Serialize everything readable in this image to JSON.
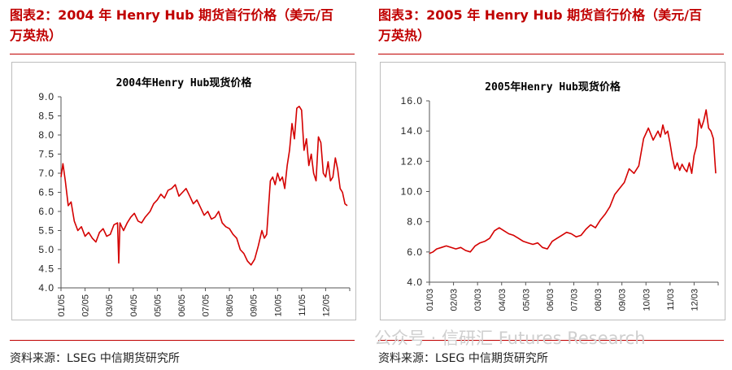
{
  "panels": [
    {
      "heading_line1": "图表2：2004 年 Henry Hub 期货首行价格（美元/百",
      "heading_line2": "万英热）",
      "source": "资料来源：LSEG  中信期货研究所"
    },
    {
      "heading_line1": "图表3：2005 年 Henry Hub 期货首行价格（美元/百",
      "heading_line2": "万英热）",
      "source": "资料来源：LSEG  中信期货研究所"
    }
  ],
  "watermark": "公众号 · 信研汇 Futures Research",
  "colors": {
    "accent": "#c00000",
    "line": "#d40000",
    "axis": "#555555"
  },
  "chart_data": [
    {
      "type": "line",
      "title": "2004年Henry Hub现货价格",
      "xlabel": "",
      "ylabel": "",
      "ylim": [
        4.0,
        9.0
      ],
      "yticks": [
        "9.0",
        "8.5",
        "8.0",
        "7.5",
        "7.0",
        "6.5",
        "6.0",
        "5.5",
        "5.0",
        "4.5",
        "4.0"
      ],
      "xticks": [
        "01/05",
        "02/05",
        "03/05",
        "04/05",
        "05/05",
        "06/05",
        "07/05",
        "08/05",
        "09/05",
        "10/05",
        "11/05",
        "12/05"
      ],
      "x_month_range": [
        0,
        12
      ],
      "series": [
        {
          "x": [
            0,
            0.08,
            0.18,
            0.3,
            0.42,
            0.55,
            0.7,
            0.85,
            1.0,
            1.15,
            1.3,
            1.45,
            1.6,
            1.75,
            1.9,
            2.05,
            2.2,
            2.35,
            2.4,
            2.45,
            2.52,
            2.6,
            2.75,
            2.9,
            3.05,
            3.2,
            3.35,
            3.5,
            3.7,
            3.85,
            4.0,
            4.15,
            4.3,
            4.45,
            4.6,
            4.75,
            4.9,
            5.05,
            5.2,
            5.35,
            5.5,
            5.65,
            5.8,
            5.95,
            6.1,
            6.25,
            6.4,
            6.55,
            6.7,
            6.85,
            7.0,
            7.15,
            7.3,
            7.45,
            7.6,
            7.75,
            7.9,
            8.05,
            8.2,
            8.35,
            8.45,
            8.55,
            8.7,
            8.8,
            8.9,
            9.0,
            9.1,
            9.2,
            9.3,
            9.4,
            9.5,
            9.6,
            9.7,
            9.8,
            9.9,
            10.0,
            10.1,
            10.2,
            10.3,
            10.4,
            10.5,
            10.6,
            10.7,
            10.8,
            10.9,
            11.0,
            11.1,
            11.2,
            11.3,
            11.4,
            11.5,
            11.6,
            11.7,
            11.8,
            11.9
          ],
          "y": [
            6.9,
            7.25,
            6.8,
            6.15,
            6.25,
            5.75,
            5.5,
            5.6,
            5.35,
            5.45,
            5.3,
            5.2,
            5.45,
            5.55,
            5.35,
            5.4,
            5.65,
            5.7,
            4.65,
            5.7,
            5.6,
            5.5,
            5.7,
            5.85,
            5.95,
            5.75,
            5.7,
            5.85,
            6.0,
            6.2,
            6.3,
            6.45,
            6.35,
            6.55,
            6.6,
            6.7,
            6.4,
            6.5,
            6.6,
            6.4,
            6.2,
            6.3,
            6.1,
            5.9,
            6.0,
            5.8,
            5.85,
            6.0,
            5.7,
            5.6,
            5.55,
            5.4,
            5.3,
            5.0,
            4.9,
            4.7,
            4.6,
            4.75,
            5.1,
            5.5,
            5.3,
            5.4,
            6.8,
            6.9,
            6.7,
            7.0,
            6.8,
            6.9,
            6.6,
            7.2,
            7.6,
            8.3,
            7.9,
            8.7,
            8.75,
            8.65,
            7.6,
            7.9,
            7.2,
            7.5,
            7.0,
            6.8,
            7.95,
            7.8,
            7.0,
            6.9,
            7.3,
            6.8,
            6.9,
            7.4,
            7.1,
            6.6,
            6.5,
            6.2,
            6.15
          ]
        }
      ]
    },
    {
      "type": "line",
      "title": "2005年Henry Hub现货价格",
      "xlabel": "",
      "ylabel": "",
      "ylim": [
        4.0,
        16.0
      ],
      "yticks": [
        "16.0",
        "14.0",
        "12.0",
        "10.0",
        "8.0",
        "6.0",
        "4.0"
      ],
      "xticks": [
        "01/03",
        "02/03",
        "03/03",
        "04/03",
        "05/03",
        "06/03",
        "07/03",
        "08/03",
        "09/03",
        "10/03",
        "11/03",
        "12/03"
      ],
      "x_month_range": [
        0,
        12
      ],
      "series": [
        {
          "x": [
            0,
            0.15,
            0.3,
            0.5,
            0.7,
            0.9,
            1.1,
            1.3,
            1.5,
            1.7,
            1.9,
            2.1,
            2.3,
            2.5,
            2.7,
            2.9,
            3.1,
            3.3,
            3.5,
            3.7,
            3.9,
            4.1,
            4.3,
            4.5,
            4.7,
            4.9,
            5.1,
            5.3,
            5.5,
            5.7,
            5.9,
            6.1,
            6.3,
            6.5,
            6.7,
            6.9,
            7.1,
            7.3,
            7.5,
            7.7,
            7.9,
            8.1,
            8.3,
            8.5,
            8.7,
            8.9,
            9.1,
            9.3,
            9.5,
            9.6,
            9.7,
            9.8,
            9.9,
            10.0,
            10.1,
            10.2,
            10.3,
            10.4,
            10.5,
            10.6,
            10.7,
            10.8,
            10.9,
            11.0,
            11.1,
            11.2,
            11.3,
            11.4,
            11.5,
            11.6,
            11.7,
            11.8,
            11.9
          ],
          "y": [
            5.9,
            6.0,
            6.2,
            6.3,
            6.4,
            6.3,
            6.2,
            6.3,
            6.1,
            6.0,
            6.4,
            6.6,
            6.7,
            6.9,
            7.4,
            7.6,
            7.4,
            7.2,
            7.1,
            6.9,
            6.7,
            6.6,
            6.5,
            6.6,
            6.3,
            6.2,
            6.7,
            6.9,
            7.1,
            7.3,
            7.2,
            7.0,
            7.1,
            7.5,
            7.8,
            7.6,
            8.1,
            8.5,
            9.0,
            9.8,
            10.2,
            10.6,
            11.5,
            11.2,
            11.7,
            13.5,
            14.2,
            13.4,
            14.0,
            13.6,
            14.4,
            13.8,
            14.0,
            13.2,
            12.2,
            11.5,
            11.9,
            11.4,
            11.8,
            11.5,
            11.3,
            11.9,
            11.2,
            12.4,
            13.0,
            14.8,
            14.2,
            14.7,
            15.4,
            14.2,
            14.0,
            13.5,
            11.2
          ]
        }
      ]
    }
  ]
}
